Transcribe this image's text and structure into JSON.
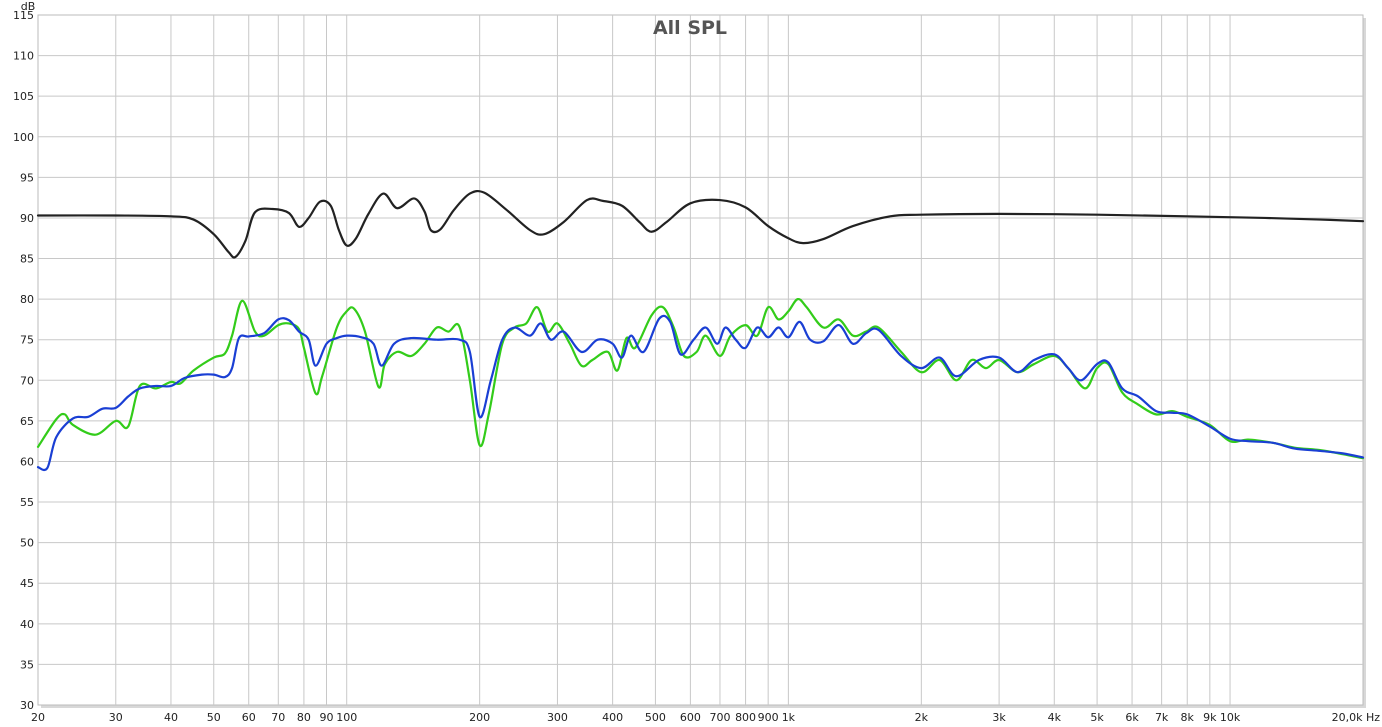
{
  "chart_data": {
    "type": "line",
    "title": "All SPL",
    "ylabel": "dB",
    "xlabel": "Hz",
    "x_scale": "log",
    "xlim": [
      20,
      20000
    ],
    "ylim": [
      30,
      115
    ],
    "grid": true,
    "x_ticks": [
      {
        "value": 20,
        "label": "20"
      },
      {
        "value": 30,
        "label": "30"
      },
      {
        "value": 40,
        "label": "40"
      },
      {
        "value": 50,
        "label": "50"
      },
      {
        "value": 60,
        "label": "60"
      },
      {
        "value": 70,
        "label": "70"
      },
      {
        "value": 80,
        "label": "80"
      },
      {
        "value": 90,
        "label": "90"
      },
      {
        "value": 100,
        "label": "100"
      },
      {
        "value": 200,
        "label": "200"
      },
      {
        "value": 300,
        "label": "300"
      },
      {
        "value": 400,
        "label": "400"
      },
      {
        "value": 500,
        "label": "500"
      },
      {
        "value": 600,
        "label": "600"
      },
      {
        "value": 700,
        "label": "700"
      },
      {
        "value": 800,
        "label": "800"
      },
      {
        "value": 900,
        "label": "900"
      },
      {
        "value": 1000,
        "label": "1k"
      },
      {
        "value": 2000,
        "label": "2k"
      },
      {
        "value": 3000,
        "label": "3k"
      },
      {
        "value": 4000,
        "label": "4k"
      },
      {
        "value": 5000,
        "label": "5k"
      },
      {
        "value": 6000,
        "label": "6k"
      },
      {
        "value": 7000,
        "label": "7k"
      },
      {
        "value": 8000,
        "label": "8k"
      },
      {
        "value": 9000,
        "label": "9k"
      },
      {
        "value": 10000,
        "label": "10k"
      },
      {
        "value": 20000,
        "label": "20,0k Hz"
      }
    ],
    "y_ticks": [
      30,
      35,
      40,
      45,
      50,
      55,
      60,
      65,
      70,
      75,
      80,
      85,
      90,
      95,
      100,
      105,
      110,
      115
    ],
    "series": [
      {
        "color": "#222222",
        "points": [
          [
            20,
            90.3
          ],
          [
            30,
            90.3
          ],
          [
            40,
            90.2
          ],
          [
            45,
            89.8
          ],
          [
            50,
            88.0
          ],
          [
            54,
            85.8
          ],
          [
            56,
            85.2
          ],
          [
            59,
            87.2
          ],
          [
            62,
            90.7
          ],
          [
            68,
            91.1
          ],
          [
            74,
            90.6
          ],
          [
            78,
            88.9
          ],
          [
            82,
            90.0
          ],
          [
            87,
            92.0
          ],
          [
            92,
            91.5
          ],
          [
            96,
            88.5
          ],
          [
            100,
            86.6
          ],
          [
            105,
            87.5
          ],
          [
            112,
            90.5
          ],
          [
            121,
            93.0
          ],
          [
            130,
            91.2
          ],
          [
            142,
            92.4
          ],
          [
            150,
            90.8
          ],
          [
            155,
            88.5
          ],
          [
            163,
            88.6
          ],
          [
            175,
            91.0
          ],
          [
            190,
            93.0
          ],
          [
            205,
            93.1
          ],
          [
            230,
            91.0
          ],
          [
            260,
            88.5
          ],
          [
            280,
            88.0
          ],
          [
            310,
            89.5
          ],
          [
            350,
            92.2
          ],
          [
            380,
            92.1
          ],
          [
            420,
            91.5
          ],
          [
            460,
            89.5
          ],
          [
            490,
            88.3
          ],
          [
            530,
            89.5
          ],
          [
            600,
            91.8
          ],
          [
            700,
            92.2
          ],
          [
            800,
            91.3
          ],
          [
            900,
            89.0
          ],
          [
            1000,
            87.5
          ],
          [
            1080,
            86.9
          ],
          [
            1200,
            87.4
          ],
          [
            1400,
            89.0
          ],
          [
            1700,
            90.2
          ],
          [
            2000,
            90.4
          ],
          [
            3000,
            90.5
          ],
          [
            5000,
            90.4
          ],
          [
            8000,
            90.2
          ],
          [
            12000,
            90.0
          ],
          [
            16000,
            89.8
          ],
          [
            20000,
            89.6
          ]
        ]
      },
      {
        "color": "#33cc1a",
        "points": [
          [
            20,
            61.8
          ],
          [
            22,
            65.2
          ],
          [
            23,
            65.8
          ],
          [
            24,
            64.5
          ],
          [
            27,
            63.3
          ],
          [
            30,
            65.0
          ],
          [
            32,
            64.3
          ],
          [
            34,
            69.3
          ],
          [
            37,
            69.0
          ],
          [
            40,
            69.8
          ],
          [
            42,
            69.6
          ],
          [
            45,
            71.2
          ],
          [
            50,
            72.8
          ],
          [
            53,
            73.3
          ],
          [
            55,
            75.5
          ],
          [
            58,
            79.8
          ],
          [
            62,
            76.0
          ],
          [
            65,
            75.5
          ],
          [
            70,
            76.8
          ],
          [
            74,
            77.0
          ],
          [
            78,
            76.3
          ],
          [
            80,
            74.0
          ],
          [
            85,
            68.4
          ],
          [
            88,
            70.5
          ],
          [
            95,
            76.5
          ],
          [
            100,
            78.5
          ],
          [
            104,
            78.8
          ],
          [
            110,
            76.0
          ],
          [
            118,
            69.2
          ],
          [
            122,
            72.0
          ],
          [
            130,
            73.5
          ],
          [
            140,
            73.0
          ],
          [
            150,
            74.5
          ],
          [
            160,
            76.5
          ],
          [
            170,
            76.0
          ],
          [
            180,
            76.6
          ],
          [
            190,
            70.0
          ],
          [
            200,
            62.0
          ],
          [
            210,
            66.0
          ],
          [
            225,
            74.5
          ],
          [
            240,
            76.5
          ],
          [
            255,
            77.0
          ],
          [
            270,
            79.0
          ],
          [
            285,
            76.0
          ],
          [
            300,
            77.0
          ],
          [
            320,
            74.5
          ],
          [
            340,
            71.8
          ],
          [
            360,
            72.5
          ],
          [
            390,
            73.5
          ],
          [
            410,
            71.2
          ],
          [
            430,
            75.2
          ],
          [
            450,
            74.0
          ],
          [
            490,
            78.0
          ],
          [
            520,
            79.0
          ],
          [
            550,
            76.5
          ],
          [
            580,
            73.0
          ],
          [
            620,
            73.5
          ],
          [
            650,
            75.5
          ],
          [
            700,
            73.0
          ],
          [
            740,
            75.5
          ],
          [
            800,
            76.8
          ],
          [
            850,
            75.5
          ],
          [
            900,
            79.0
          ],
          [
            950,
            77.5
          ],
          [
            1000,
            78.5
          ],
          [
            1050,
            80.0
          ],
          [
            1100,
            79.0
          ],
          [
            1200,
            76.5
          ],
          [
            1300,
            77.5
          ],
          [
            1400,
            75.5
          ],
          [
            1500,
            76.0
          ],
          [
            1600,
            76.5
          ],
          [
            1800,
            73.5
          ],
          [
            2000,
            71.0
          ],
          [
            2200,
            72.5
          ],
          [
            2400,
            70.0
          ],
          [
            2600,
            72.5
          ],
          [
            2800,
            71.5
          ],
          [
            3000,
            72.5
          ],
          [
            3300,
            71.0
          ],
          [
            3600,
            72.0
          ],
          [
            4000,
            73.0
          ],
          [
            4300,
            71.5
          ],
          [
            4700,
            69.0
          ],
          [
            5000,
            71.5
          ],
          [
            5300,
            72.0
          ],
          [
            5700,
            68.5
          ],
          [
            6200,
            67.0
          ],
          [
            6800,
            65.8
          ],
          [
            7400,
            66.2
          ],
          [
            8000,
            65.5
          ],
          [
            9000,
            64.5
          ],
          [
            10000,
            62.5
          ],
          [
            11000,
            62.7
          ],
          [
            12500,
            62.3
          ],
          [
            14000,
            61.7
          ],
          [
            16000,
            61.4
          ],
          [
            18000,
            60.9
          ],
          [
            20000,
            60.4
          ]
        ]
      },
      {
        "color": "#1a3fd4",
        "points": [
          [
            20,
            59.3
          ],
          [
            21,
            59.2
          ],
          [
            22,
            63.0
          ],
          [
            24,
            65.3
          ],
          [
            26,
            65.5
          ],
          [
            28,
            66.5
          ],
          [
            30,
            66.6
          ],
          [
            32,
            68.0
          ],
          [
            34,
            69.0
          ],
          [
            37,
            69.3
          ],
          [
            40,
            69.3
          ],
          [
            43,
            70.3
          ],
          [
            47,
            70.7
          ],
          [
            50,
            70.7
          ],
          [
            53,
            70.4
          ],
          [
            55,
            71.5
          ],
          [
            57,
            75.2
          ],
          [
            60,
            75.4
          ],
          [
            65,
            75.8
          ],
          [
            70,
            77.5
          ],
          [
            74,
            77.4
          ],
          [
            78,
            76.0
          ],
          [
            82,
            75.0
          ],
          [
            85,
            71.8
          ],
          [
            90,
            74.5
          ],
          [
            95,
            75.2
          ],
          [
            100,
            75.5
          ],
          [
            108,
            75.3
          ],
          [
            115,
            74.5
          ],
          [
            120,
            71.8
          ],
          [
            128,
            74.5
          ],
          [
            140,
            75.2
          ],
          [
            160,
            75.0
          ],
          [
            180,
            75.0
          ],
          [
            190,
            73.5
          ],
          [
            200,
            65.5
          ],
          [
            212,
            70.0
          ],
          [
            225,
            75.0
          ],
          [
            240,
            76.5
          ],
          [
            260,
            75.5
          ],
          [
            275,
            77.0
          ],
          [
            290,
            75.0
          ],
          [
            310,
            76.0
          ],
          [
            340,
            73.5
          ],
          [
            370,
            75.0
          ],
          [
            400,
            74.5
          ],
          [
            420,
            72.8
          ],
          [
            440,
            75.5
          ],
          [
            470,
            73.5
          ],
          [
            510,
            77.6
          ],
          [
            540,
            77.2
          ],
          [
            570,
            73.2
          ],
          [
            610,
            75.0
          ],
          [
            650,
            76.5
          ],
          [
            690,
            74.5
          ],
          [
            720,
            76.5
          ],
          [
            760,
            75.0
          ],
          [
            800,
            74.0
          ],
          [
            850,
            76.5
          ],
          [
            900,
            75.3
          ],
          [
            950,
            76.5
          ],
          [
            1000,
            75.3
          ],
          [
            1060,
            77.2
          ],
          [
            1120,
            75.0
          ],
          [
            1200,
            74.8
          ],
          [
            1300,
            76.8
          ],
          [
            1400,
            74.5
          ],
          [
            1500,
            75.8
          ],
          [
            1600,
            76.2
          ],
          [
            1800,
            73.0
          ],
          [
            2000,
            71.5
          ],
          [
            2200,
            72.8
          ],
          [
            2400,
            70.5
          ],
          [
            2700,
            72.5
          ],
          [
            3000,
            72.8
          ],
          [
            3300,
            71.0
          ],
          [
            3600,
            72.5
          ],
          [
            4000,
            73.2
          ],
          [
            4300,
            71.5
          ],
          [
            4600,
            70.0
          ],
          [
            5000,
            72.0
          ],
          [
            5300,
            72.2
          ],
          [
            5700,
            69.0
          ],
          [
            6200,
            68.0
          ],
          [
            6800,
            66.2
          ],
          [
            7400,
            66.0
          ],
          [
            8000,
            65.8
          ],
          [
            9000,
            64.3
          ],
          [
            10000,
            62.8
          ],
          [
            11000,
            62.5
          ],
          [
            12500,
            62.3
          ],
          [
            14000,
            61.6
          ],
          [
            16000,
            61.3
          ],
          [
            18000,
            61.0
          ],
          [
            20000,
            60.5
          ]
        ]
      }
    ]
  }
}
